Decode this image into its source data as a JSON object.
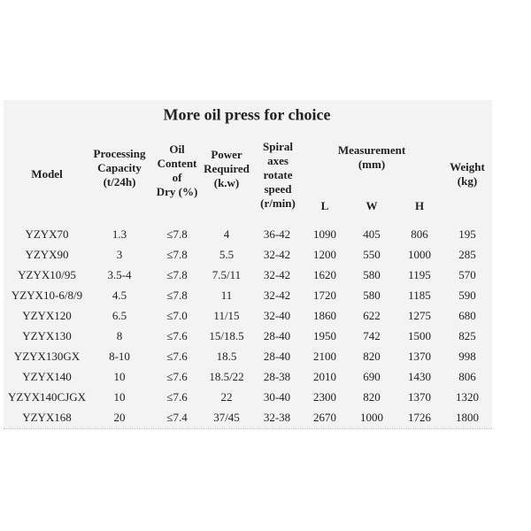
{
  "title": "More oil press for choice",
  "headers": {
    "model": "Model",
    "capacity": [
      "Processing",
      "Capacity",
      "(t/24h)"
    ],
    "oil": [
      "Oil",
      "Content",
      "of",
      "Dry (%)"
    ],
    "power": [
      "Power",
      "Required",
      "(k.w)"
    ],
    "spiral": [
      "Spiral",
      "axes",
      "rotate",
      "speed",
      "(r/min)"
    ],
    "measurement": [
      "Measurement",
      "(mm)"
    ],
    "dims": [
      "L",
      "W",
      "H"
    ],
    "weight": [
      "Weight",
      "(kg)"
    ]
  },
  "rows": [
    [
      "YZYX70",
      "1.3",
      "≤7.8",
      "4",
      "36-42",
      "1090",
      "405",
      "806",
      "195"
    ],
    [
      "YZYX90",
      "3",
      "≤7.8",
      "5.5",
      "32-42",
      "1200",
      "550",
      "1000",
      "285"
    ],
    [
      "YZYX10/95",
      "3.5-4",
      "≤7.8",
      "7.5/11",
      "32-42",
      "1620",
      "580",
      "1195",
      "570"
    ],
    [
      "YZYX10-6/8/9",
      "4.5",
      "≤7.8",
      "11",
      "32-42",
      "1720",
      "580",
      "1185",
      "590"
    ],
    [
      "YZYX120",
      "6.5",
      "≤7.0",
      "11/15",
      "32-40",
      "1860",
      "622",
      "1275",
      "680"
    ],
    [
      "YZYX130",
      "8",
      "≤7.6",
      "15/18.5",
      "28-40",
      "1950",
      "742",
      "1500",
      "825"
    ],
    [
      "YZYX130GX",
      "8-10",
      "≤7.6",
      "18.5",
      "28-40",
      "2100",
      "820",
      "1370",
      "998"
    ],
    [
      "YZYX140",
      "10",
      "≤7.6",
      "18.5/22",
      "28-38",
      "2010",
      "690",
      "1430",
      "806"
    ],
    [
      "YZYX140CJGX",
      "10",
      "≤7.6",
      "22",
      "30-40",
      "2300",
      "820",
      "1370",
      "1320"
    ],
    [
      "YZYX168",
      "20",
      "≤7.4",
      "37/45",
      "32-38",
      "2670",
      "1000",
      "1726",
      "1800"
    ]
  ]
}
